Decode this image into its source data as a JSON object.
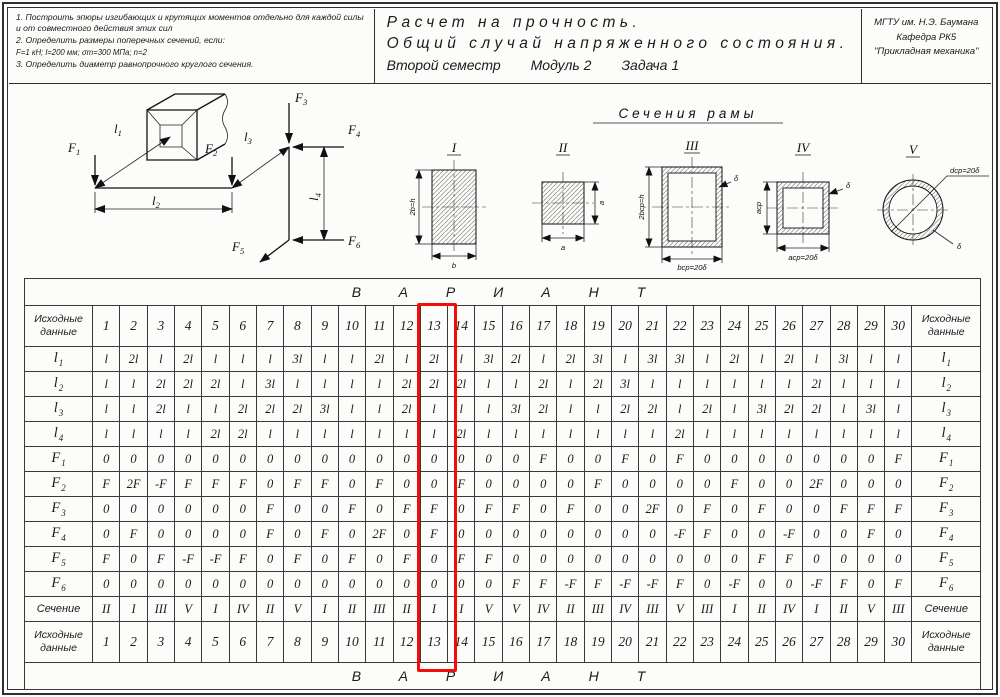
{
  "header": {
    "instructions": [
      "1. Построить эпюры изгибающих и крутящих моментов отдельно для каждой силы и от совместного действия этих сил",
      "2. Определить размеры поперечных сечений, если:",
      "F=1 кН;  l=200 мм;  σт=300 МПа;  n=2",
      "3. Определить диаметр равнопрочного круглого сечения."
    ]
  },
  "title": {
    "line1": "Расчет на прочность.",
    "line2": "Общий случай напряженного состояния.",
    "line3_parts": [
      "Второй семестр",
      "Модуль 2",
      "Задача 1"
    ]
  },
  "org": {
    "line1": "МГТУ им. Н.Э. Баумана",
    "line2": "Кафедра РК5",
    "line3": "\"Прикладная механика\""
  },
  "frame": {
    "F1": {
      "base": "F",
      "sub": "1"
    },
    "F2": {
      "base": "F",
      "sub": "2"
    },
    "F3": {
      "base": "F",
      "sub": "3"
    },
    "F4": {
      "base": "F",
      "sub": "4"
    },
    "F5": {
      "base": "F",
      "sub": "5"
    },
    "F6": {
      "base": "F",
      "sub": "6"
    },
    "l1": {
      "base": "l",
      "sub": "1"
    },
    "l2": {
      "base": "l",
      "sub": "2"
    },
    "l3": {
      "base": "l",
      "sub": "3"
    },
    "l4": {
      "base": "l",
      "sub": "4"
    }
  },
  "sections_panel": {
    "title": "Сечения рамы",
    "sections": [
      {
        "numeral": "I",
        "dims": {
          "left": "2b=h",
          "bottom": "b"
        }
      },
      {
        "numeral": "II",
        "dims": {
          "right": "a",
          "bottom": "a"
        }
      },
      {
        "numeral": "III",
        "dims": {
          "left": "2bср=h",
          "bottom": "bср=20δ",
          "wall": "δ"
        }
      },
      {
        "numeral": "IV",
        "dims": {
          "left": "aср",
          "bottom": "aср=20δ",
          "wall": "δ"
        }
      },
      {
        "numeral": "V",
        "dims": {
          "diameter": "dср=20δ",
          "wall": "δ"
        }
      }
    ]
  },
  "table": {
    "variant_title": "ВАРИАНТ",
    "corner_label": "Исходные данные",
    "highlighted_column": "13",
    "columns": [
      "1",
      "2",
      "3",
      "4",
      "5",
      "6",
      "7",
      "8",
      "9",
      "10",
      "11",
      "12",
      "13",
      "14",
      "15",
      "16",
      "17",
      "18",
      "19",
      "20",
      "21",
      "22",
      "23",
      "24",
      "25",
      "26",
      "27",
      "28",
      "29",
      "30"
    ],
    "rows": [
      {
        "name": "l1",
        "label": {
          "base": "l",
          "sub": "1"
        },
        "values": [
          "l",
          "2l",
          "l",
          "2l",
          "l",
          "l",
          "l",
          "3l",
          "l",
          "l",
          "2l",
          "l",
          "2l",
          "l",
          "3l",
          "2l",
          "l",
          "2l",
          "3l",
          "l",
          "3l",
          "3l",
          "l",
          "2l",
          "l",
          "2l",
          "l",
          "3l",
          "l",
          "l"
        ]
      },
      {
        "name": "l2",
        "label": {
          "base": "l",
          "sub": "2"
        },
        "values": [
          "l",
          "l",
          "2l",
          "2l",
          "2l",
          "l",
          "3l",
          "l",
          "l",
          "l",
          "l",
          "2l",
          "2l",
          "2l",
          "l",
          "l",
          "2l",
          "l",
          "2l",
          "3l",
          "l",
          "l",
          "l",
          "l",
          "l",
          "l",
          "2l",
          "l",
          "l",
          "l"
        ]
      },
      {
        "name": "l3",
        "label": {
          "base": "l",
          "sub": "3"
        },
        "values": [
          "l",
          "l",
          "2l",
          "l",
          "l",
          "2l",
          "2l",
          "2l",
          "3l",
          "l",
          "l",
          "2l",
          "l",
          "l",
          "l",
          "3l",
          "2l",
          "l",
          "l",
          "2l",
          "2l",
          "l",
          "2l",
          "l",
          "3l",
          "2l",
          "2l",
          "l",
          "3l",
          "l"
        ]
      },
      {
        "name": "l4",
        "label": {
          "base": "l",
          "sub": "4"
        },
        "values": [
          "l",
          "l",
          "l",
          "l",
          "2l",
          "2l",
          "l",
          "l",
          "l",
          "l",
          "l",
          "l",
          "l",
          "2l",
          "l",
          "l",
          "l",
          "l",
          "l",
          "l",
          "l",
          "2l",
          "l",
          "l",
          "l",
          "l",
          "l",
          "l",
          "l",
          "l"
        ]
      },
      {
        "name": "F1",
        "label": {
          "base": "F",
          "sub": "1"
        },
        "values": [
          "0",
          "0",
          "0",
          "0",
          "0",
          "0",
          "0",
          "0",
          "0",
          "0",
          "0",
          "0",
          "0",
          "0",
          "0",
          "0",
          "F",
          "0",
          "0",
          "F",
          "0",
          "F",
          "0",
          "0",
          "0",
          "0",
          "0",
          "0",
          "0",
          "F"
        ]
      },
      {
        "name": "F2",
        "label": {
          "base": "F",
          "sub": "2"
        },
        "values": [
          "F",
          "2F",
          "-F",
          "F",
          "F",
          "F",
          "0",
          "F",
          "F",
          "0",
          "F",
          "0",
          "0",
          "F",
          "0",
          "0",
          "0",
          "0",
          "F",
          "0",
          "0",
          "0",
          "0",
          "F",
          "0",
          "0",
          "2F",
          "0",
          "0",
          "0"
        ]
      },
      {
        "name": "F3",
        "label": {
          "base": "F",
          "sub": "3"
        },
        "values": [
          "0",
          "0",
          "0",
          "0",
          "0",
          "0",
          "F",
          "0",
          "0",
          "F",
          "0",
          "F",
          "F",
          "0",
          "F",
          "F",
          "0",
          "F",
          "0",
          "0",
          "2F",
          "0",
          "F",
          "0",
          "F",
          "0",
          "0",
          "F",
          "F",
          "F"
        ]
      },
      {
        "name": "F4",
        "label": {
          "base": "F",
          "sub": "4"
        },
        "values": [
          "0",
          "F",
          "0",
          "0",
          "0",
          "0",
          "F",
          "0",
          "F",
          "0",
          "2F",
          "0",
          "F",
          "0",
          "0",
          "0",
          "0",
          "0",
          "0",
          "0",
          "0",
          "-F",
          "F",
          "0",
          "0",
          "-F",
          "0",
          "0",
          "F",
          "0"
        ]
      },
      {
        "name": "F5",
        "label": {
          "base": "F",
          "sub": "5"
        },
        "values": [
          "F",
          "0",
          "F",
          "-F",
          "-F",
          "F",
          "0",
          "F",
          "0",
          "F",
          "0",
          "F",
          "0",
          "F",
          "F",
          "0",
          "0",
          "0",
          "0",
          "0",
          "0",
          "0",
          "0",
          "0",
          "F",
          "F",
          "0",
          "0",
          "0",
          "0"
        ]
      },
      {
        "name": "F6",
        "label": {
          "base": "F",
          "sub": "6"
        },
        "values": [
          "0",
          "0",
          "0",
          "0",
          "0",
          "0",
          "0",
          "0",
          "0",
          "0",
          "0",
          "0",
          "0",
          "0",
          "0",
          "F",
          "F",
          "-F",
          "F",
          "-F",
          "-F",
          "F",
          "0",
          "-F",
          "0",
          "0",
          "-F",
          "F",
          "0",
          "F"
        ]
      },
      {
        "name": "section",
        "label": {
          "base": "Сечение",
          "sub": ""
        },
        "values": [
          "II",
          "I",
          "III",
          "V",
          "I",
          "IV",
          "II",
          "V",
          "I",
          "II",
          "III",
          "II",
          "I",
          "I",
          "V",
          "V",
          "IV",
          "II",
          "III",
          "IV",
          "III",
          "V",
          "III",
          "I",
          "II",
          "IV",
          "I",
          "II",
          "V",
          "III"
        ]
      }
    ]
  }
}
